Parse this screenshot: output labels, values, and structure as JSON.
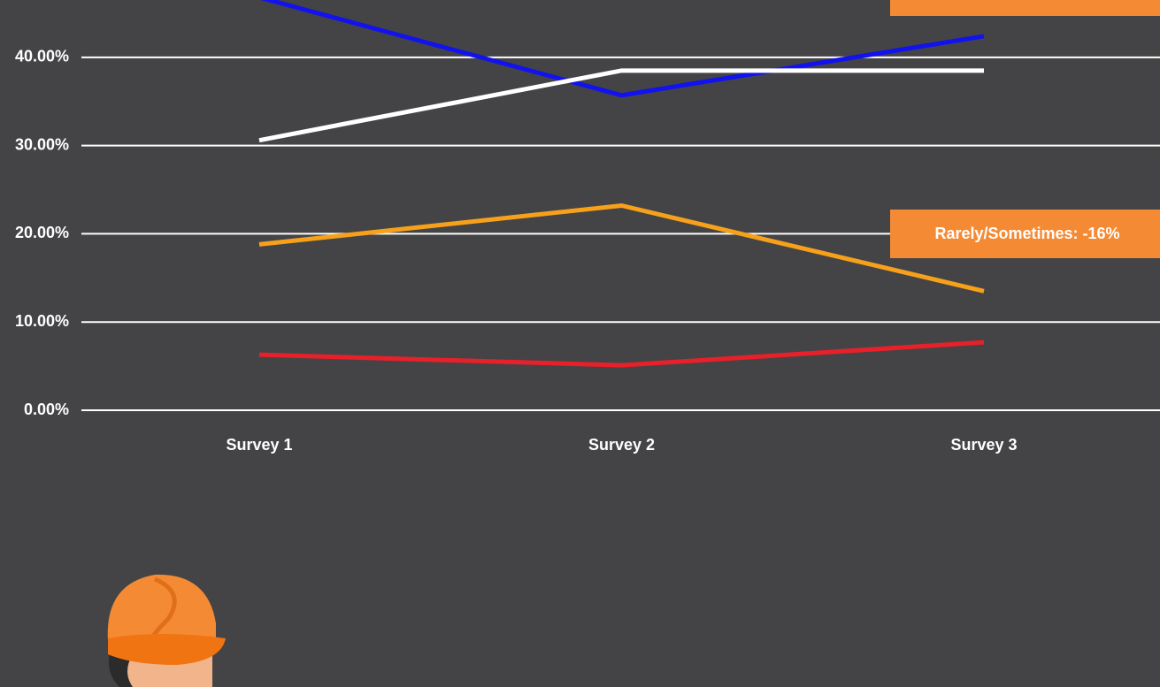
{
  "chart_data": {
    "type": "line",
    "categories": [
      "Survey 1",
      "Survey 2",
      "Survey 3"
    ],
    "series": [
      {
        "color": "#1212ee",
        "values": [
          46.8,
          35.7,
          42.4
        ]
      },
      {
        "color": "#ffffff",
        "values": [
          30.6,
          38.5,
          38.5
        ]
      },
      {
        "color": "#f7a11b",
        "values": [
          18.8,
          23.2,
          13.5
        ]
      },
      {
        "color": "#e8202a",
        "values": [
          6.3,
          5.1,
          7.7
        ]
      }
    ],
    "ylim": [
      0,
      46.5
    ],
    "yticks": [
      {
        "value": 0,
        "label": "0.00%"
      },
      {
        "value": 10,
        "label": "10.00%"
      },
      {
        "value": 20,
        "label": "20.00%"
      },
      {
        "value": 30,
        "label": "30.00%"
      },
      {
        "value": 40,
        "label": "40.00%"
      }
    ],
    "grid": true,
    "annotations": [
      {
        "text": "Rarely/Sometimes: -16%",
        "color": "#f58a34"
      }
    ]
  }
}
